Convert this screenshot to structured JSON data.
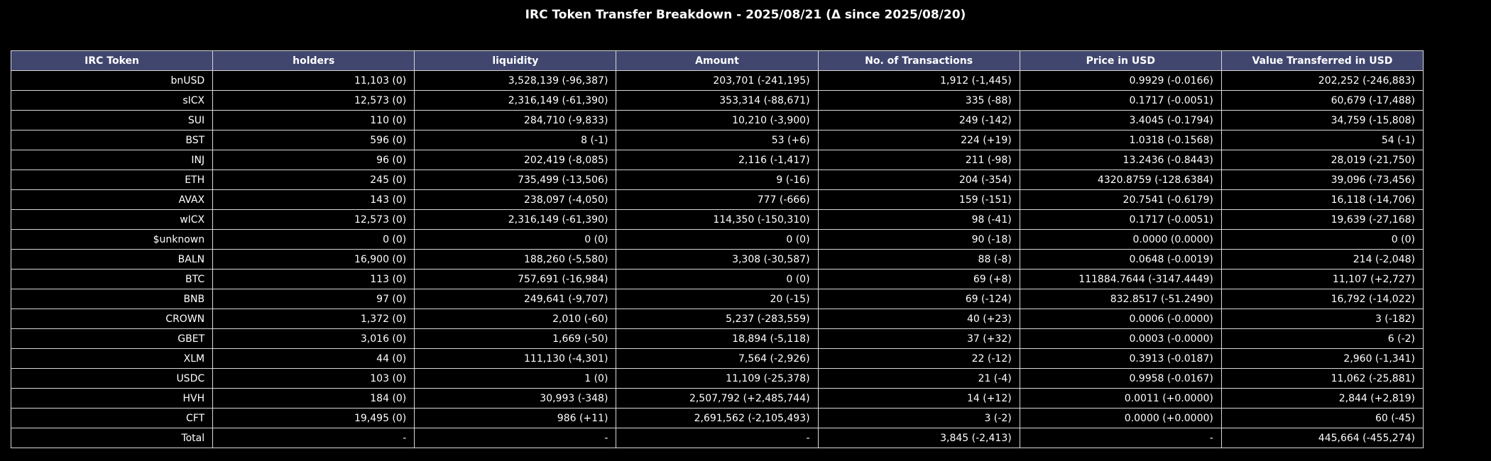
{
  "title": "IRC Token Transfer Breakdown - 2025/08/21 (Δ since 2025/08/20)",
  "chart_data": {
    "type": "table",
    "title": "IRC Token Transfer Breakdown - 2025/08/21 (Δ since 2025/08/20)",
    "columns": [
      "IRC Token",
      "holders",
      "liquidity",
      "Amount",
      "No. of Transactions",
      "Price in USD",
      "Value Transferred in USD"
    ],
    "rows": [
      [
        "bnUSD",
        "11,103 (0)",
        "3,528,139 (-96,387)",
        "203,701 (-241,195)",
        "1,912 (-1,445)",
        "0.9929 (-0.0166)",
        "202,252 (-246,883)"
      ],
      [
        "sICX",
        "12,573 (0)",
        "2,316,149 (-61,390)",
        "353,314 (-88,671)",
        "335 (-88)",
        "0.1717 (-0.0051)",
        "60,679 (-17,488)"
      ],
      [
        "SUI",
        "110 (0)",
        "284,710 (-9,833)",
        "10,210 (-3,900)",
        "249 (-142)",
        "3.4045 (-0.1794)",
        "34,759 (-15,808)"
      ],
      [
        "BST",
        "596 (0)",
        "8 (-1)",
        "53 (+6)",
        "224 (+19)",
        "1.0318 (-0.1568)",
        "54 (-1)"
      ],
      [
        "INJ",
        "96 (0)",
        "202,419 (-8,085)",
        "2,116 (-1,417)",
        "211 (-98)",
        "13.2436 (-0.8443)",
        "28,019 (-21,750)"
      ],
      [
        "ETH",
        "245 (0)",
        "735,499 (-13,506)",
        "9 (-16)",
        "204 (-354)",
        "4320.8759 (-128.6384)",
        "39,096 (-73,456)"
      ],
      [
        "AVAX",
        "143 (0)",
        "238,097 (-4,050)",
        "777 (-666)",
        "159 (-151)",
        "20.7541 (-0.6179)",
        "16,118 (-14,706)"
      ],
      [
        "wICX",
        "12,573 (0)",
        "2,316,149 (-61,390)",
        "114,350 (-150,310)",
        "98 (-41)",
        "0.1717 (-0.0051)",
        "19,639 (-27,168)"
      ],
      [
        "$unknown",
        "0 (0)",
        "0 (0)",
        "0 (0)",
        "90 (-18)",
        "0.0000 (0.0000)",
        "0 (0)"
      ],
      [
        "BALN",
        "16,900 (0)",
        "188,260 (-5,580)",
        "3,308 (-30,587)",
        "88 (-8)",
        "0.0648 (-0.0019)",
        "214 (-2,048)"
      ],
      [
        "BTC",
        "113 (0)",
        "757,691 (-16,984)",
        "0 (0)",
        "69 (+8)",
        "111884.7644 (-3147.4449)",
        "11,107 (+2,727)"
      ],
      [
        "BNB",
        "97 (0)",
        "249,641 (-9,707)",
        "20 (-15)",
        "69 (-124)",
        "832.8517 (-51.2490)",
        "16,792 (-14,022)"
      ],
      [
        "CROWN",
        "1,372 (0)",
        "2,010 (-60)",
        "5,237 (-283,559)",
        "40 (+23)",
        "0.0006 (-0.0000)",
        "3 (-182)"
      ],
      [
        "GBET",
        "3,016 (0)",
        "1,669 (-50)",
        "18,894 (-5,118)",
        "37 (+32)",
        "0.0003 (-0.0000)",
        "6 (-2)"
      ],
      [
        "XLM",
        "44 (0)",
        "111,130 (-4,301)",
        "7,564 (-2,926)",
        "22 (-12)",
        "0.3913 (-0.0187)",
        "2,960 (-1,341)"
      ],
      [
        "USDC",
        "103 (0)",
        "1 (0)",
        "11,109 (-25,378)",
        "21 (-4)",
        "0.9958 (-0.0167)",
        "11,062 (-25,881)"
      ],
      [
        "HVH",
        "184 (0)",
        "30,993 (-348)",
        "2,507,792 (+2,485,744)",
        "14 (+12)",
        "0.0011 (+0.0000)",
        "2,844 (+2,819)"
      ],
      [
        "CFT",
        "19,495 (0)",
        "986 (+11)",
        "2,691,562 (-2,105,493)",
        "3 (-2)",
        "0.0000 (+0.0000)",
        "60 (-45)"
      ],
      [
        "Total",
        "-",
        "-",
        "-",
        "3,845 (-2,413)",
        "-",
        "445,664 (-455,274)"
      ]
    ]
  },
  "colors": {
    "background": "#000000",
    "header_fill": "#40466e",
    "grid": "#d8d8d8",
    "text": "#ffffff"
  }
}
